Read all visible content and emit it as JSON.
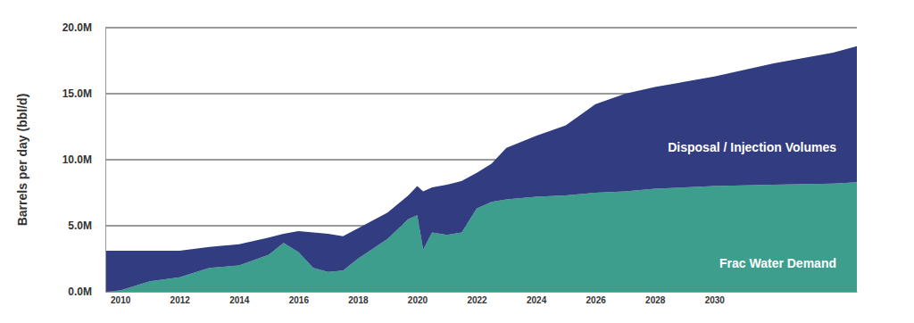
{
  "chart_data": {
    "type": "area",
    "stacked": true,
    "y_label": "Barrels per day (bbl/d)",
    "x": [
      2009.5,
      2010,
      2011,
      2012,
      2013,
      2014,
      2015,
      2015.5,
      2016,
      2016.5,
      2017,
      2017.5,
      2018,
      2019,
      2019.7,
      2020,
      2020.2,
      2020.5,
      2021,
      2021.5,
      2022,
      2022.5,
      2023,
      2024,
      2025,
      2026,
      2027,
      2028,
      2030,
      2032,
      2034,
      2034.8
    ],
    "xlim": [
      2009.5,
      2034.8
    ],
    "xticks": [
      2010,
      2012,
      2014,
      2016,
      2018,
      2020,
      2022,
      2024,
      2026,
      2028,
      2030
    ],
    "ylim": [
      0,
      20000000
    ],
    "yticks": [
      {
        "value": 0,
        "label": "0.0M"
      },
      {
        "value": 5000000,
        "label": "5.0M"
      },
      {
        "value": 10000000,
        "label": "10.0M"
      },
      {
        "value": 15000000,
        "label": "15.0M"
      },
      {
        "value": 20000000,
        "label": "20.0M"
      }
    ],
    "grid": true,
    "series": [
      {
        "name": "Frac Water Demand",
        "color": "#3e9e8e",
        "values": [
          0,
          100000,
          800000,
          1100000,
          1800000,
          2000000,
          2800000,
          3700000,
          3000000,
          1800000,
          1500000,
          1600000,
          2500000,
          4000000,
          5500000,
          5800000,
          3200000,
          4500000,
          4300000,
          4500000,
          6300000,
          6800000,
          7000000,
          7200000,
          7300000,
          7500000,
          7600000,
          7800000,
          8000000,
          8100000,
          8200000,
          8300000
        ]
      },
      {
        "name": "Disposal / Injection Volumes",
        "color": "#323c80",
        "values": [
          3100000,
          3000000,
          2300000,
          2000000,
          1600000,
          1600000,
          1300000,
          700000,
          1600000,
          2700000,
          2900000,
          2600000,
          2300000,
          2000000,
          1800000,
          2200000,
          4400000,
          3400000,
          3800000,
          3900000,
          2700000,
          2900000,
          3900000,
          4600000,
          5300000,
          6700000,
          7400000,
          7700000,
          8300000,
          9200000,
          9900000,
          10300000
        ]
      }
    ]
  }
}
